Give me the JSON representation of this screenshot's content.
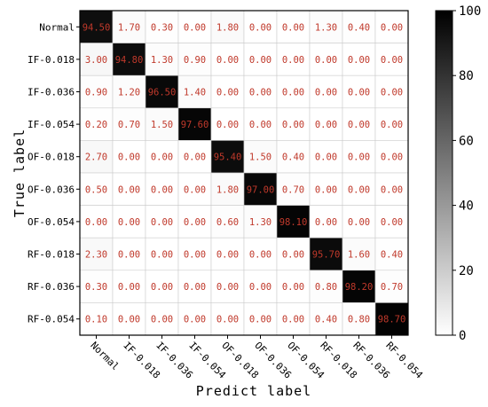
{
  "chart_data": {
    "type": "heatmap",
    "title": "",
    "xlabel": "Predict label",
    "ylabel": "True label",
    "x_categories": [
      "Normal",
      "IF-0.018",
      "IF-0.036",
      "IF-0.054",
      "OF-0.018",
      "OF-0.036",
      "OF-0.054",
      "RF-0.018",
      "RF-0.036",
      "RF-0.054"
    ],
    "y_categories": [
      "Normal",
      "IF-0.018",
      "IF-0.036",
      "IF-0.054",
      "OF-0.018",
      "OF-0.036",
      "OF-0.054",
      "RF-0.018",
      "RF-0.036",
      "RF-0.054"
    ],
    "values": [
      [
        94.5,
        1.7,
        0.3,
        0.0,
        1.8,
        0.0,
        0.0,
        1.3,
        0.4,
        0.0
      ],
      [
        3.0,
        94.8,
        1.3,
        0.9,
        0.0,
        0.0,
        0.0,
        0.0,
        0.0,
        0.0
      ],
      [
        0.9,
        1.2,
        96.5,
        1.4,
        0.0,
        0.0,
        0.0,
        0.0,
        0.0,
        0.0
      ],
      [
        0.2,
        0.7,
        1.5,
        97.6,
        0.0,
        0.0,
        0.0,
        0.0,
        0.0,
        0.0
      ],
      [
        2.7,
        0.0,
        0.0,
        0.0,
        95.4,
        1.5,
        0.4,
        0.0,
        0.0,
        0.0
      ],
      [
        0.5,
        0.0,
        0.0,
        0.0,
        1.8,
        97.0,
        0.7,
        0.0,
        0.0,
        0.0
      ],
      [
        0.0,
        0.0,
        0.0,
        0.0,
        0.6,
        1.3,
        98.1,
        0.0,
        0.0,
        0.0
      ],
      [
        2.3,
        0.0,
        0.0,
        0.0,
        0.0,
        0.0,
        0.0,
        95.7,
        1.6,
        0.4
      ],
      [
        0.3,
        0.0,
        0.0,
        0.0,
        0.0,
        0.0,
        0.0,
        0.8,
        98.2,
        0.7
      ],
      [
        0.1,
        0.0,
        0.0,
        0.0,
        0.0,
        0.0,
        0.0,
        0.4,
        0.8,
        98.7
      ]
    ],
    "colorbar": {
      "min": 0,
      "max": 100,
      "ticks": [
        0,
        20,
        40,
        60,
        80,
        100
      ]
    },
    "colormap": [
      "#ffffff",
      "#000000"
    ],
    "cell_text_color": "#c0392b",
    "grid": true
  }
}
